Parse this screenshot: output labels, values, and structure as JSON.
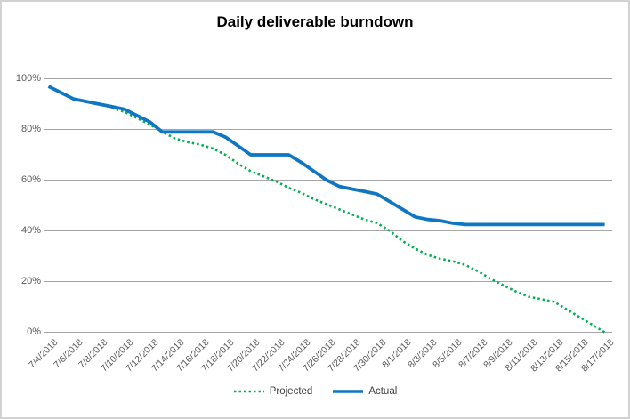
{
  "chart_data": {
    "type": "line",
    "title": "Daily deliverable burndown",
    "x": [
      "7/4/2018",
      "7/5/2018",
      "7/6/2018",
      "7/7/2018",
      "7/8/2018",
      "7/9/2018",
      "7/10/2018",
      "7/11/2018",
      "7/12/2018",
      "7/13/2018",
      "7/14/2018",
      "7/15/2018",
      "7/16/2018",
      "7/17/2018",
      "7/18/2018",
      "7/19/2018",
      "7/20/2018",
      "7/21/2018",
      "7/22/2018",
      "7/23/2018",
      "7/24/2018",
      "7/25/2018",
      "7/26/2018",
      "7/27/2018",
      "7/28/2018",
      "7/29/2018",
      "7/30/2018",
      "7/31/2018",
      "8/1/2018",
      "8/2/2018",
      "8/3/2018",
      "8/4/2018",
      "8/5/2018",
      "8/6/2018",
      "8/7/2018",
      "8/8/2018",
      "8/9/2018",
      "8/10/2018",
      "8/11/2018",
      "8/12/2018",
      "8/13/2018",
      "8/14/2018",
      "8/15/2018",
      "8/16/2018",
      "8/17/2018"
    ],
    "x_axis_tick_labels": [
      "7/4/2018",
      "7/6/2018",
      "7/8/2018",
      "7/10/2018",
      "7/12/2018",
      "7/14/2018",
      "7/16/2018",
      "7/18/2018",
      "7/20/2018",
      "7/22/2018",
      "7/24/2018",
      "7/26/2018",
      "7/28/2018",
      "7/30/2018",
      "8/1/2018",
      "8/3/2018",
      "8/5/2018",
      "8/7/2018",
      "8/9/2018",
      "8/11/2018",
      "8/13/2018",
      "8/15/2018",
      "8/17/2018"
    ],
    "y_axis": {
      "tick_labels": [
        "0%",
        "20%",
        "40%",
        "60%",
        "80%",
        "100%"
      ],
      "tick_values": [
        0,
        20,
        40,
        60,
        80,
        100
      ],
      "range": [
        0,
        100
      ],
      "unit": "percent",
      "grid": true
    },
    "series": [
      {
        "name": "Projected",
        "style": "dotted",
        "color": "#00b050",
        "values": [
          null,
          null,
          null,
          null,
          null,
          88.5,
          87,
          84.5,
          82,
          79,
          76.5,
          75,
          74,
          72.5,
          70,
          66.5,
          63.5,
          61.5,
          59.5,
          57,
          55,
          52.5,
          50.5,
          48.5,
          46.5,
          44.5,
          43,
          40,
          36,
          33,
          30.5,
          29,
          28,
          26.5,
          24,
          21,
          18.5,
          16,
          14,
          13,
          12,
          9,
          6,
          3,
          0
        ]
      },
      {
        "name": "Actual",
        "style": "solid",
        "color": "#0e76c3",
        "values": [
          97,
          94.5,
          92,
          91,
          90,
          89,
          88,
          85.5,
          83,
          79,
          79,
          79,
          79,
          79,
          77,
          73.5,
          70,
          70,
          70,
          70,
          67,
          63.5,
          60,
          57.5,
          56.5,
          55.5,
          54.5,
          51.5,
          48.5,
          45.5,
          44.5,
          44,
          43,
          42.5,
          42.5,
          42.5,
          42.5,
          42.5,
          42.5,
          42.5,
          42.5,
          42.5,
          42.5,
          42.5,
          42.5
        ]
      }
    ],
    "legend_position": "bottom",
    "gridline_color": "#a6a6a6",
    "axis_label_color": "#595959"
  }
}
